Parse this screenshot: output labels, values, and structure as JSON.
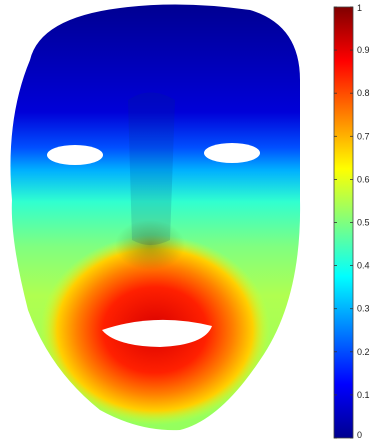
{
  "chart_data": {
    "type": "heatmap",
    "subject": "3D face surface displacement map",
    "colormap": "jet",
    "colorbar": {
      "position": "right",
      "range": [
        0,
        1
      ],
      "tick_labels": [
        "0",
        "0.1",
        "0.2",
        "0.3",
        "0.4",
        "0.5",
        "0.6",
        "0.7",
        "0.8",
        "0.9",
        "1"
      ]
    },
    "regions": [
      {
        "name": "forehead",
        "value": 0.05
      },
      {
        "name": "brow",
        "value": 0.18
      },
      {
        "name": "eye-level",
        "value": 0.32
      },
      {
        "name": "cheeks",
        "value": 0.5
      },
      {
        "name": "nose",
        "value": 0.52
      },
      {
        "name": "mouth",
        "value": 0.92
      },
      {
        "name": "chin",
        "value": 0.68
      }
    ],
    "colors": {
      "jet_0": "#00008f",
      "jet_0.125": "#0000ff",
      "jet_0.375": "#00ffff",
      "jet_0.5": "#7fff7f",
      "jet_0.625": "#ffff00",
      "jet_0.875": "#ff0000",
      "jet_1": "#800000"
    }
  }
}
